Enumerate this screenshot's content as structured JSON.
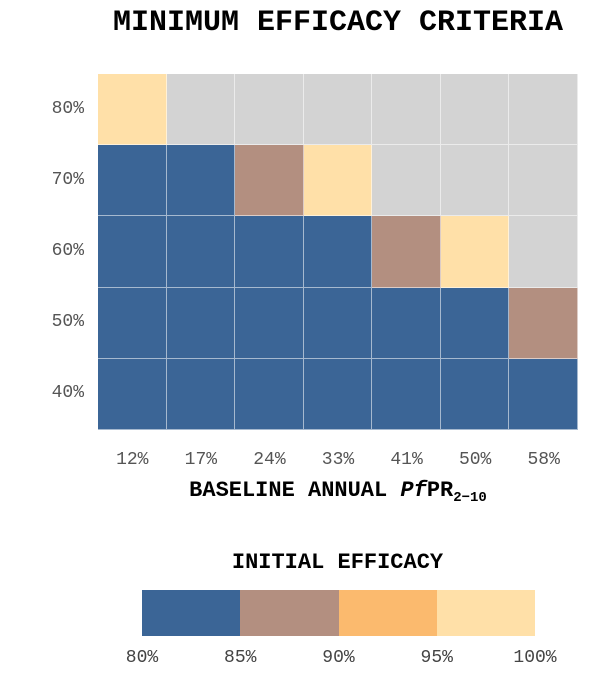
{
  "chart_data": {
    "type": "heatmap",
    "title": "MINIMUM EFFICACY CRITERIA",
    "xlabel_parts": [
      "BASELINE ANNUAL ",
      "Pf",
      "PR",
      "2−10"
    ],
    "x_categories": [
      "12%",
      "17%",
      "24%",
      "33%",
      "41%",
      "50%",
      "58%"
    ],
    "y_categories": [
      "80%",
      "70%",
      "60%",
      "50%",
      "40%"
    ],
    "cell_levels": [
      [
        95,
        null,
        null,
        null,
        null,
        null,
        null
      ],
      [
        80,
        80,
        85,
        100,
        null,
        null,
        null
      ],
      [
        80,
        80,
        80,
        80,
        85,
        100,
        null
      ],
      [
        80,
        80,
        80,
        80,
        80,
        80,
        85
      ],
      [
        80,
        80,
        80,
        80,
        80,
        80,
        80
      ]
    ],
    "legend": {
      "title": "INITIAL EFFICACY",
      "ticks": [
        "80%",
        "85%",
        "90%",
        "95%",
        "100%"
      ],
      "bins": [
        {
          "from": 80,
          "to": 85,
          "color": "#3b6596"
        },
        {
          "from": 85,
          "to": 90,
          "color": "#b38f80"
        },
        {
          "from": 90,
          "to": 95,
          "color": "#fbba6e"
        },
        {
          "from": 95,
          "to": 100,
          "color": "#ffe0a8"
        }
      ],
      "na_color": "#d3d3d3"
    }
  }
}
